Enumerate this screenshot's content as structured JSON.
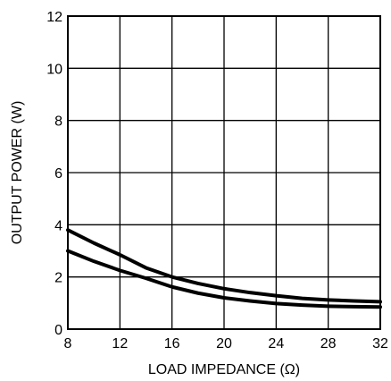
{
  "chart_data": {
    "type": "line",
    "title": "",
    "xlabel": "LOAD IMPEDANCE (Ω)",
    "ylabel": "OUTPUT POWER (W)",
    "xlim": [
      8,
      32
    ],
    "ylim": [
      0,
      12
    ],
    "xticks": [
      8,
      12,
      16,
      20,
      24,
      28,
      32
    ],
    "yticks": [
      0,
      2,
      4,
      6,
      8,
      10,
      12
    ],
    "xtick_labels": [
      "8",
      "12",
      "16",
      "20",
      "24",
      "28",
      "32"
    ],
    "ytick_labels": [
      "0",
      "2",
      "4",
      "6",
      "8",
      "10",
      "12"
    ],
    "grid": true,
    "legend": "none",
    "line_color": "#000000",
    "series": [
      {
        "x": [
          8,
          10,
          12,
          14,
          16,
          18,
          20,
          22,
          24,
          26,
          28,
          30,
          32
        ],
        "y": [
          3.8,
          3.3,
          2.85,
          2.35,
          2.0,
          1.75,
          1.55,
          1.4,
          1.28,
          1.18,
          1.12,
          1.08,
          1.05
        ]
      },
      {
        "x": [
          8,
          10,
          12,
          14,
          16,
          18,
          20,
          22,
          24,
          26,
          28,
          30,
          32
        ],
        "y": [
          3.0,
          2.6,
          2.25,
          1.95,
          1.62,
          1.38,
          1.2,
          1.08,
          0.98,
          0.92,
          0.88,
          0.86,
          0.85
        ]
      }
    ]
  }
}
